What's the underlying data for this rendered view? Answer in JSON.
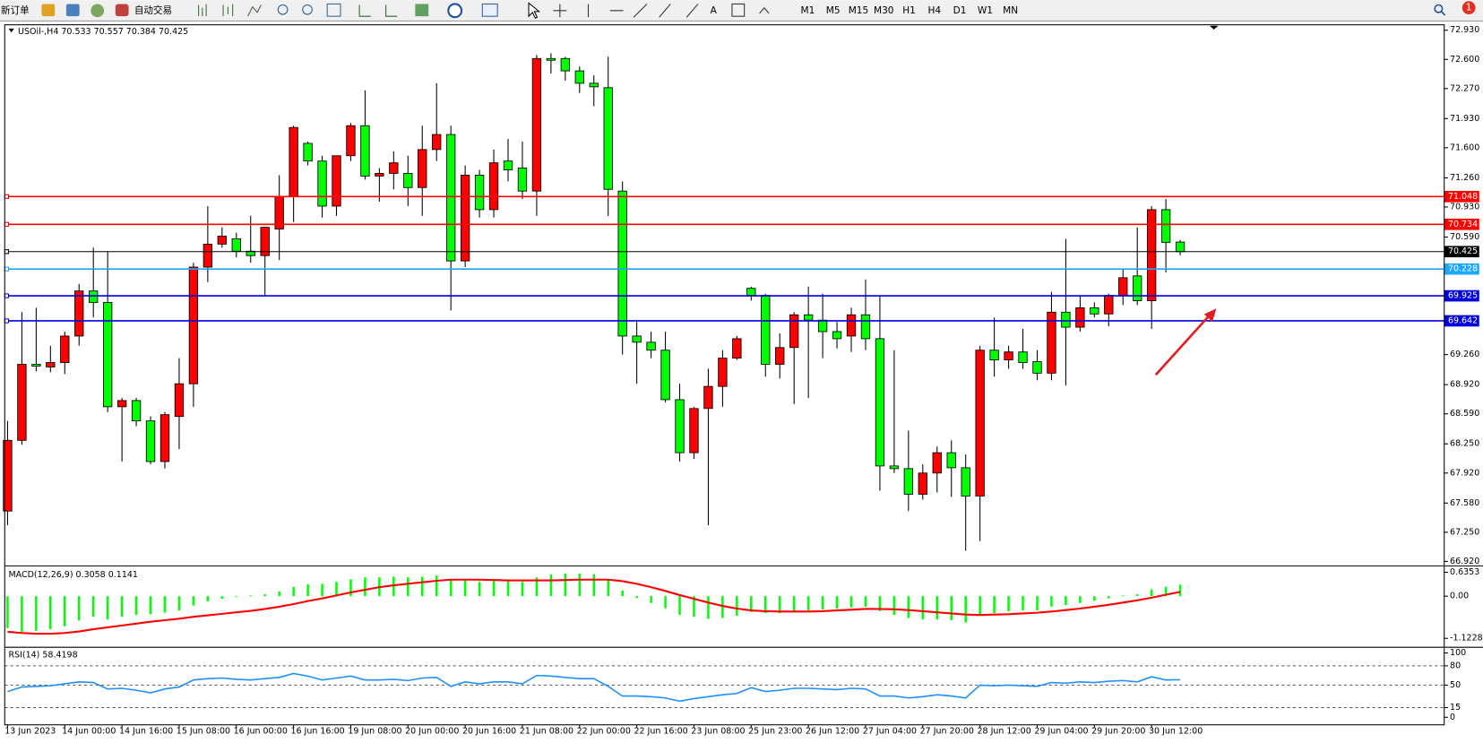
{
  "toolbar": {
    "new_order": "新订单",
    "auto_trading": "自动交易",
    "timeframes": [
      "M1",
      "M5",
      "M15",
      "M30",
      "H1",
      "H4",
      "D1",
      "W1",
      "MN"
    ],
    "badge": "1"
  },
  "chart_data": [
    {
      "type": "candlestick",
      "title": "USOil-,H4",
      "up_color": "#ff0000",
      "down_color": "#00ff00",
      "categories": [
        "13 Jun 2023",
        null,
        null,
        null,
        "14 Jun 00:00",
        null,
        null,
        null,
        "14 Jun 16:00",
        null,
        null,
        null,
        "15 Jun 08:00",
        null,
        null,
        null,
        "16 Jun 00:00",
        null,
        null,
        null,
        "16 Jun 16:00",
        null,
        null,
        null,
        "19 Jun 08:00",
        null,
        null,
        null,
        "20 Jun 00:00",
        null,
        null,
        null,
        "20 Jun 16:00",
        null,
        null,
        null,
        "21 Jun 08:00",
        null,
        null,
        null,
        "22 Jun 00:00",
        null,
        null,
        null,
        "22 Jun 16:00",
        null,
        null,
        null,
        "23 Jun 08:00",
        null,
        null,
        null,
        "25 Jun 23:00",
        null,
        null,
        null,
        "26 Jun 12:00",
        null,
        null,
        null,
        "27 Jun 04:00",
        null,
        null,
        null,
        "27 Jun 20:00",
        null,
        null,
        null,
        "28 Jun 12:00",
        null,
        null,
        null,
        "29 Jun 04:00",
        null,
        null,
        null,
        "29 Jun 20:00",
        null,
        null,
        null,
        "30 Jun 12:00",
        null,
        null
      ],
      "open": [
        67.49,
        68.29,
        69.15,
        69.12,
        69.17,
        69.47,
        69.98,
        69.85,
        68.67,
        68.74,
        68.51,
        68.05,
        68.56,
        68.93,
        70.25,
        70.51,
        70.57,
        70.43,
        70.38,
        70.68,
        71.05,
        71.65,
        71.45,
        70.94,
        71.51,
        71.85,
        71.28,
        71.31,
        71.31,
        71.15,
        71.58,
        71.75,
        70.32,
        71.29,
        70.9,
        71.45,
        71.37,
        71.11,
        72.61,
        72.61,
        72.47,
        72.33,
        72.28,
        71.11,
        69.47,
        69.4,
        69.31,
        68.75,
        68.15,
        68.65,
        68.9,
        69.22,
        70.01,
        69.93,
        69.15,
        69.34,
        69.71,
        69.65,
        69.52,
        69.47,
        69.71,
        69.44,
        68.0,
        67.97,
        67.68,
        67.92,
        68.15,
        67.98,
        67.66,
        69.31,
        69.2,
        69.29,
        69.18,
        69.05,
        69.74,
        69.57,
        69.79,
        69.72,
        69.93,
        70.15,
        69.87,
        70.9,
        70.533
      ],
      "high": [
        68.51,
        69.74,
        69.79,
        69.36,
        69.52,
        70.06,
        70.47,
        70.43,
        68.77,
        68.77,
        68.56,
        68.61,
        69.22,
        70.3,
        70.94,
        70.7,
        70.64,
        70.83,
        70.7,
        71.29,
        71.85,
        71.67,
        71.51,
        71.51,
        71.88,
        72.25,
        71.37,
        71.56,
        71.51,
        71.85,
        72.33,
        71.85,
        71.4,
        71.35,
        71.58,
        71.7,
        71.67,
        72.65,
        72.67,
        72.63,
        72.52,
        72.42,
        72.63,
        71.22,
        69.63,
        69.52,
        69.52,
        68.93,
        68.67,
        69.1,
        69.31,
        69.47,
        70.03,
        69.95,
        69.5,
        69.74,
        70.03,
        69.95,
        69.63,
        69.79,
        70.11,
        69.92,
        69.31,
        68.4,
        68.02,
        68.22,
        68.29,
        68.13,
        69.36,
        69.68,
        69.36,
        69.55,
        69.31,
        69.97,
        70.57,
        69.93,
        69.85,
        69.95,
        70.22,
        70.7,
        70.94,
        71.02,
        70.557
      ],
      "low": [
        67.33,
        68.24,
        69.07,
        69.06,
        69.04,
        69.36,
        69.68,
        68.61,
        68.05,
        68.45,
        68.02,
        67.97,
        68.19,
        68.67,
        70.08,
        70.47,
        70.36,
        70.3,
        69.93,
        70.33,
        70.76,
        71.4,
        70.81,
        70.83,
        71.45,
        71.24,
        70.99,
        71.13,
        70.94,
        70.83,
        71.45,
        69.76,
        70.25,
        70.81,
        70.81,
        71.22,
        71.02,
        70.83,
        72.44,
        72.36,
        72.22,
        72.07,
        70.83,
        69.26,
        68.93,
        69.22,
        68.72,
        68.05,
        68.08,
        67.33,
        68.67,
        69.2,
        69.87,
        69.01,
        68.99,
        68.7,
        68.77,
        69.22,
        69.33,
        69.29,
        69.31,
        67.72,
        67.92,
        67.49,
        67.62,
        67.7,
        67.65,
        67.04,
        67.15,
        69.01,
        69.1,
        69.1,
        68.97,
        68.97,
        68.91,
        69.52,
        69.68,
        69.58,
        69.82,
        69.82,
        69.55,
        70.19,
        70.384
      ],
      "close": [
        68.29,
        69.15,
        69.13,
        69.17,
        69.47,
        69.98,
        69.85,
        68.67,
        68.74,
        68.51,
        68.05,
        68.58,
        68.93,
        70.25,
        70.51,
        70.6,
        70.43,
        70.38,
        70.7,
        71.05,
        71.83,
        71.45,
        70.94,
        71.51,
        71.85,
        71.28,
        71.31,
        71.43,
        71.15,
        71.58,
        71.75,
        70.32,
        71.29,
        70.9,
        71.43,
        71.35,
        71.11,
        72.61,
        72.59,
        72.47,
        72.33,
        72.29,
        71.13,
        69.47,
        69.4,
        69.31,
        68.75,
        68.15,
        68.65,
        68.9,
        69.22,
        69.44,
        69.93,
        69.15,
        69.34,
        69.71,
        69.65,
        69.52,
        69.44,
        69.71,
        69.44,
        68.0,
        67.97,
        67.68,
        67.92,
        68.15,
        67.98,
        67.66,
        69.31,
        69.2,
        69.29,
        69.17,
        69.05,
        69.74,
        69.57,
        69.79,
        69.72,
        69.93,
        70.13,
        69.87,
        70.9,
        70.53,
        70.425
      ],
      "ylim": [
        66.88,
        72.97
      ],
      "yticks": [
        {
          "value": 72.93,
          "label": "72.930"
        },
        {
          "value": 72.6,
          "label": "72.600"
        },
        {
          "value": 72.27,
          "label": "72.270"
        },
        {
          "value": 71.93,
          "label": "71.930"
        },
        {
          "value": 71.6,
          "label": "71.600"
        },
        {
          "value": 71.26,
          "label": "71.260"
        },
        {
          "value": 70.93,
          "label": "70.930"
        },
        {
          "value": 70.59,
          "label": "70.590"
        },
        {
          "value": 69.26,
          "label": "69.260"
        },
        {
          "value": 68.92,
          "label": "68.920"
        },
        {
          "value": 68.59,
          "label": "68.590"
        },
        {
          "value": 68.25,
          "label": "68.250"
        },
        {
          "value": 67.92,
          "label": "67.920"
        },
        {
          "value": 67.58,
          "label": "67.580"
        },
        {
          "value": 67.25,
          "label": "67.250"
        },
        {
          "value": 66.92,
          "label": "66.920"
        }
      ],
      "levels": [
        {
          "value": 71.048,
          "color": "#ff0000"
        },
        {
          "value": 70.734,
          "color": "#ff0000"
        },
        {
          "value": 70.425,
          "color": "#000000"
        },
        {
          "value": 70.228,
          "color": "#1ea7ff"
        },
        {
          "value": 69.925,
          "color": "#0000dd"
        },
        {
          "value": 69.642,
          "color": "#0000dd"
        }
      ]
    },
    {
      "type": "macd",
      "title": "MACD(12,26,9)",
      "ylim": [
        -1.335,
        0.756
      ],
      "yticks": [
        0.6353,
        {
          "value": 0,
          "label": "0.00"
        },
        -1.1228
      ],
      "series": [
        {
          "color": "#00ff00",
          "values": [
            -0.85,
            -0.95,
            -0.92,
            -0.88,
            -0.8,
            -0.65,
            -0.55,
            -0.62,
            -0.55,
            -0.5,
            -0.48,
            -0.44,
            -0.38,
            -0.25,
            -0.14,
            -0.07,
            -0.02,
            0.02,
            0.05,
            0.12,
            0.25,
            0.32,
            0.33,
            0.38,
            0.45,
            0.5,
            0.5,
            0.52,
            0.5,
            0.52,
            0.55,
            0.45,
            0.42,
            0.38,
            0.4,
            0.4,
            0.38,
            0.5,
            0.58,
            0.6,
            0.6,
            0.58,
            0.45,
            0.15,
            -0.05,
            -0.18,
            -0.32,
            -0.5,
            -0.55,
            -0.6,
            -0.58,
            -0.52,
            -0.42,
            -0.45,
            -0.45,
            -0.4,
            -0.38,
            -0.35,
            -0.33,
            -0.3,
            -0.28,
            -0.4,
            -0.5,
            -0.58,
            -0.62,
            -0.62,
            -0.64,
            -0.7,
            -0.52,
            -0.45,
            -0.4,
            -0.38,
            -0.38,
            -0.28,
            -0.24,
            -0.18,
            -0.12,
            -0.06,
            0.02,
            0.05,
            0.18,
            0.25,
            0.3058
          ]
        },
        {
          "color": "#ff0000",
          "values": [
            -0.95,
            -0.98,
            -1.0,
            -1.0,
            -0.98,
            -0.94,
            -0.88,
            -0.83,
            -0.78,
            -0.73,
            -0.68,
            -0.64,
            -0.6,
            -0.55,
            -0.51,
            -0.47,
            -0.43,
            -0.39,
            -0.34,
            -0.28,
            -0.21,
            -0.13,
            -0.06,
            0.02,
            0.1,
            0.17,
            0.24,
            0.29,
            0.33,
            0.37,
            0.41,
            0.44,
            0.44,
            0.44,
            0.43,
            0.42,
            0.42,
            0.42,
            0.42,
            0.43,
            0.44,
            0.44,
            0.44,
            0.4,
            0.33,
            0.24,
            0.14,
            0.03,
            -0.07,
            -0.17,
            -0.26,
            -0.33,
            -0.38,
            -0.4,
            -0.41,
            -0.41,
            -0.41,
            -0.4,
            -0.38,
            -0.36,
            -0.34,
            -0.34,
            -0.35,
            -0.37,
            -0.4,
            -0.43,
            -0.46,
            -0.49,
            -0.5,
            -0.49,
            -0.48,
            -0.46,
            -0.44,
            -0.41,
            -0.37,
            -0.33,
            -0.28,
            -0.23,
            -0.17,
            -0.11,
            -0.04,
            0.04,
            0.1141
          ]
        }
      ]
    },
    {
      "type": "rsi",
      "title": "RSI(14)",
      "ylim": [
        -10.3,
        105.9
      ],
      "yticks": [
        100,
        80,
        50,
        15,
        0
      ],
      "levels": [
        80,
        50,
        15
      ],
      "series": [
        {
          "color": "#1e90ff",
          "values": [
            40,
            47,
            48,
            49,
            52,
            55,
            54,
            44,
            45,
            42,
            38,
            44,
            47,
            58,
            60,
            61,
            59,
            58,
            60,
            62,
            68,
            64,
            58,
            61,
            64,
            58,
            58,
            59,
            57,
            61,
            62,
            48,
            55,
            52,
            55,
            55,
            52,
            65,
            64,
            62,
            60,
            60,
            48,
            33,
            33,
            32,
            30,
            25,
            29,
            32,
            35,
            37,
            46,
            40,
            42,
            45,
            45,
            44,
            43,
            45,
            44,
            33,
            33,
            30,
            32,
            35,
            33,
            30,
            50,
            49,
            50,
            49,
            48,
            54,
            53,
            55,
            54,
            56,
            57,
            55,
            63,
            58,
            58.4198
          ]
        }
      ]
    }
  ]
}
